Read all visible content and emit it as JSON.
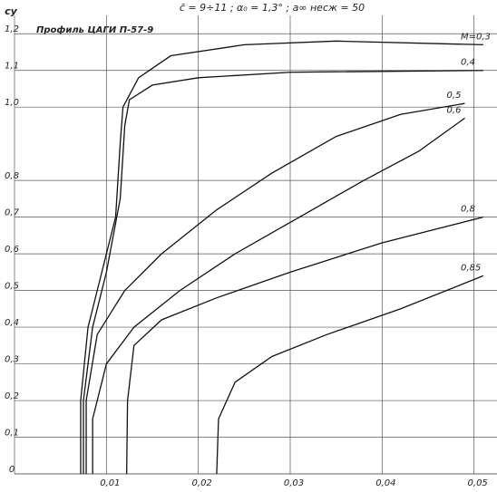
{
  "chart_data": {
    "type": "line",
    "title": "c̄ = 9÷11 ;   α₀ = 1,3° ;   a∞ несж = 50",
    "annotation": "Профиль ЦАГИ П-57-9",
    "y_label": "cy",
    "xlim": [
      0,
      0.0525
    ],
    "ylim": [
      0,
      1.25
    ],
    "xticks": [
      {
        "value": 0.01,
        "label": "0,01"
      },
      {
        "value": 0.02,
        "label": "0,02"
      },
      {
        "value": 0.03,
        "label": "0,03"
      },
      {
        "value": 0.04,
        "label": "0,04"
      },
      {
        "value": 0.05,
        "label": "0,05"
      }
    ],
    "yticks": [
      0,
      {
        "value": 0.1,
        "label": "0,1"
      },
      {
        "value": 0.2,
        "label": "0,2"
      },
      {
        "value": 0.3,
        "label": "0,3"
      },
      {
        "value": 0.4,
        "label": "0,4"
      },
      {
        "value": 0.5,
        "label": "0,5"
      },
      {
        "value": 0.6,
        "label": "0,6"
      },
      {
        "value": 0.7,
        "label": "0,7"
      },
      {
        "value": 0.8,
        "label": "0,8"
      },
      {
        "value": 1.0,
        "label": "1,0"
      },
      {
        "value": 1.1,
        "label": "1,1"
      },
      {
        "value": 1.2,
        "label": "1,2"
      }
    ],
    "grid": true,
    "series": [
      {
        "name": "M=0,3",
        "color": "#111",
        "x": [
          0.0072,
          0.0072,
          0.008,
          0.0095,
          0.011,
          0.0115,
          0.0118,
          0.0135,
          0.017,
          0.025,
          0.035,
          0.051
        ],
        "values": [
          0,
          0.2,
          0.4,
          0.55,
          0.7,
          0.9,
          1.0,
          1.08,
          1.14,
          1.17,
          1.18,
          1.17
        ]
      },
      {
        "name": "0,4",
        "color": "#111",
        "x": [
          0.0075,
          0.0075,
          0.0085,
          0.01,
          0.0115,
          0.012,
          0.0125,
          0.015,
          0.02,
          0.03,
          0.051
        ],
        "values": [
          0,
          0.2,
          0.4,
          0.55,
          0.75,
          0.95,
          1.02,
          1.06,
          1.08,
          1.095,
          1.1
        ]
      },
      {
        "name": "0,5",
        "color": "#111",
        "x": [
          0.0078,
          0.0078,
          0.009,
          0.012,
          0.016,
          0.022,
          0.028,
          0.035,
          0.042,
          0.049
        ],
        "values": [
          0,
          0.2,
          0.38,
          0.5,
          0.6,
          0.72,
          0.82,
          0.92,
          0.98,
          1.01
        ]
      },
      {
        "name": "0,6",
        "color": "#111",
        "x": [
          0.0085,
          0.0085,
          0.01,
          0.013,
          0.018,
          0.024,
          0.031,
          0.038,
          0.044,
          0.049
        ],
        "values": [
          0,
          0.15,
          0.3,
          0.4,
          0.5,
          0.6,
          0.7,
          0.8,
          0.88,
          0.97
        ]
      },
      {
        "name": "0,8",
        "color": "#111",
        "x": [
          0.0122,
          0.0123,
          0.013,
          0.016,
          0.022,
          0.03,
          0.04,
          0.051
        ],
        "values": [
          0,
          0.2,
          0.35,
          0.42,
          0.48,
          0.55,
          0.63,
          0.7
        ]
      },
      {
        "name": "0,85",
        "color": "#111",
        "x": [
          0.022,
          0.0222,
          0.024,
          0.028,
          0.034,
          0.042,
          0.051
        ],
        "values": [
          0,
          0.15,
          0.25,
          0.32,
          0.38,
          0.45,
          0.54
        ]
      }
    ]
  }
}
